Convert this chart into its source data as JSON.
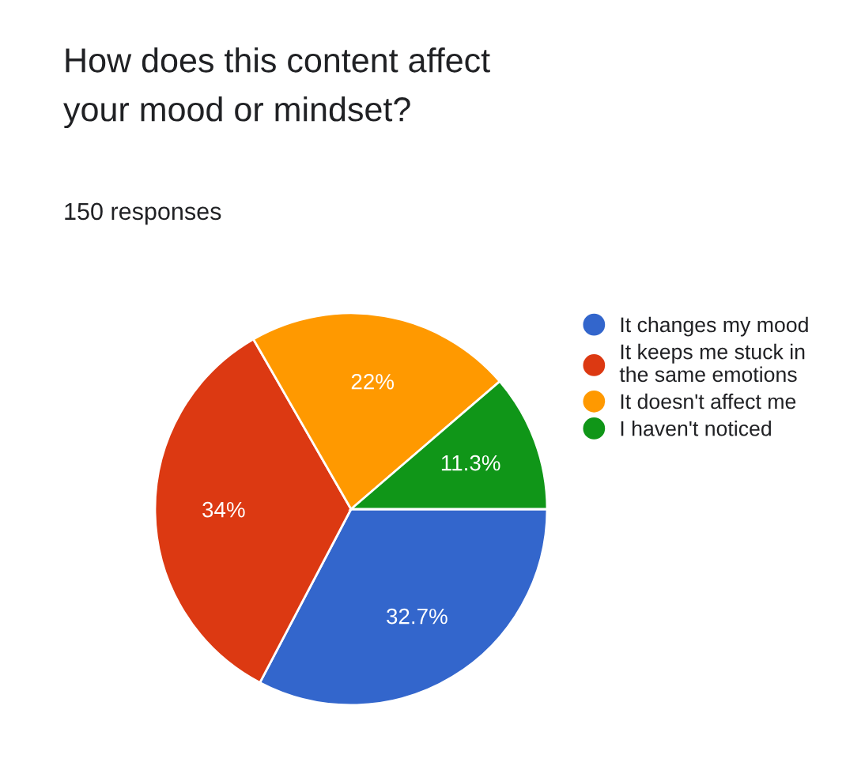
{
  "chart_data": {
    "type": "pie",
    "title": "How does this content affect\nyour mood or mindset?",
    "subtitle": "150 responses",
    "categories": [
      "It changes my mood",
      "It keeps me stuck in\nthe same emotions",
      "It doesn't affect me",
      "I haven't noticed"
    ],
    "values": [
      32.7,
      34,
      22,
      11.3
    ],
    "colors": [
      "#3366cc",
      "#dc3912",
      "#ff9900",
      "#109618"
    ],
    "value_labels": [
      "32.7%",
      "34%",
      "22%",
      "11.3%"
    ],
    "legend": "right"
  }
}
